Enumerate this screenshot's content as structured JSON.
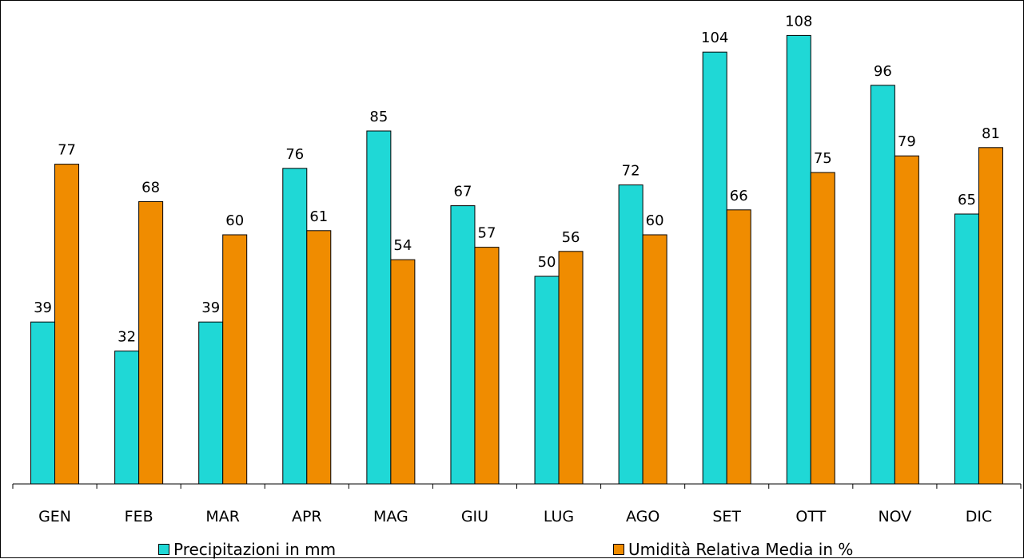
{
  "chart_data": {
    "type": "bar",
    "categories": [
      "GEN",
      "FEB",
      "MAR",
      "APR",
      "MAG",
      "GIU",
      "LUG",
      "AGO",
      "SET",
      "OTT",
      "NOV",
      "DIC"
    ],
    "series": [
      {
        "name": "Precipitazioni in mm",
        "color": "#1fd8d6",
        "values": [
          39,
          32,
          39,
          76,
          85,
          67,
          50,
          72,
          104,
          108,
          96,
          65
        ]
      },
      {
        "name": "Umidità Relativa Media in %",
        "color": "#f08c00",
        "values": [
          77,
          68,
          60,
          61,
          54,
          57,
          56,
          60,
          66,
          75,
          79,
          81
        ]
      }
    ],
    "data_labels": true,
    "ylim": [
      0,
      110
    ],
    "grid": false,
    "legend": "bottom"
  }
}
